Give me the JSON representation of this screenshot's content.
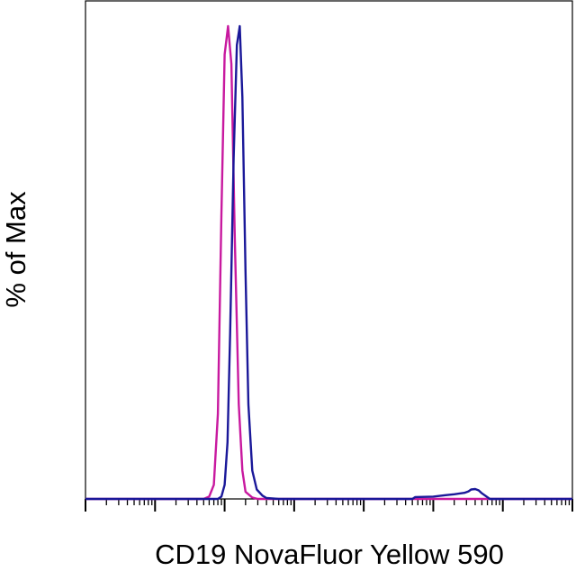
{
  "chart_data": {
    "type": "line",
    "title": "",
    "xlabel": "CD19 NovaFluor Yellow 590",
    "ylabel": "% of Max",
    "x_scale": "log",
    "xlim": [
      1,
      10000000
    ],
    "ylim": [
      0,
      100
    ],
    "grid": false,
    "legend": "none",
    "series": [
      {
        "color": "#c8199f",
        "x": [
          1,
          50,
          60,
          70,
          80,
          90,
          100,
          112,
          125,
          140,
          160,
          180,
          200,
          250,
          300,
          10000000
        ],
        "y": [
          0,
          0,
          0.5,
          3,
          18,
          60,
          94,
          100,
          92,
          55,
          20,
          6,
          1.5,
          0.3,
          0,
          0
        ]
      },
      {
        "color": "#1a1899",
        "x": [
          1,
          80,
          90,
          100,
          110,
          120,
          135,
          150,
          165,
          180,
          200,
          220,
          250,
          290,
          350,
          400,
          600,
          50000,
          55000,
          100000,
          150000,
          200000,
          280000,
          320000,
          350000,
          400000,
          450000,
          500000,
          650000,
          10000000
        ],
        "y": [
          0,
          0,
          0.5,
          3,
          12,
          35,
          72,
          96,
          100,
          85,
          48,
          20,
          6,
          2,
          0.7,
          0.2,
          0,
          0,
          0.4,
          0.5,
          0.8,
          1.0,
          1.3,
          1.6,
          2.0,
          2.1,
          1.8,
          1.2,
          0,
          0
        ]
      }
    ]
  }
}
